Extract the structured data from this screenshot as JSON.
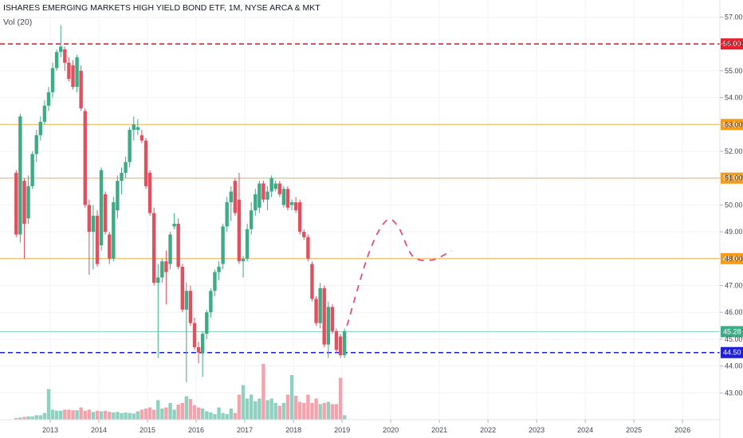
{
  "header": {
    "title": "ISHARES EMERGING MARKETS HIGH YIELD BOND ETF, 1M, NYSE ARCA & MKT",
    "volume_label": "Vol (20)"
  },
  "colors": {
    "up": "#3dab85",
    "down": "#e0505e",
    "vol_up": "#8fd1c0",
    "vol_down": "#f3a3ab",
    "red_line": "#e8202d",
    "orange_line": "#f5b047",
    "orange_badge": "#f59b1c",
    "teal_line": "#8fd1c0",
    "blue_line": "#1f1fd6",
    "projection": "#e64d7a",
    "grid": "#f2f3f5",
    "axis_text": "#434651"
  },
  "chart_data": {
    "type": "candlestick",
    "title": "ISHARES EMERGING MARKETS HIGH YIELD BOND ETF, 1M, NYSE ARCA & MKT",
    "timeframe": "1M",
    "x_ticks": [
      "2013",
      "2014",
      "2015",
      "2016",
      "2017",
      "2018",
      "2019",
      "2020",
      "2021",
      "2022",
      "2023",
      "2024",
      "2025",
      "2026"
    ],
    "y_ticks": [
      "43.00",
      "44.00",
      "45.00",
      "46.00",
      "47.00",
      "48.00",
      "49.00",
      "50.00",
      "51.00",
      "52.00",
      "53.00",
      "54.00",
      "55.00",
      "56.00",
      "57.00"
    ],
    "ylim": [
      42.0,
      57.4
    ],
    "xlim": [
      2012.0,
      2026.8
    ],
    "grid": true,
    "price_axis": "right",
    "candles": [
      {
        "t": 2012.3,
        "o": 51.2,
        "h": 51.3,
        "l": 48.8,
        "c": 48.9
      },
      {
        "t": 2012.383,
        "o": 48.9,
        "h": 53.4,
        "l": 48.6,
        "c": 53.3
      },
      {
        "t": 2012.467,
        "o": 50.9,
        "h": 51.0,
        "l": 48.0,
        "c": 49.3
      },
      {
        "t": 2012.55,
        "o": 49.5,
        "h": 51.1,
        "l": 49.3,
        "c": 50.7
      },
      {
        "t": 2012.633,
        "o": 50.7,
        "h": 52.0,
        "l": 50.6,
        "c": 51.9
      },
      {
        "t": 2012.717,
        "o": 51.9,
        "h": 52.8,
        "l": 51.6,
        "c": 52.6
      },
      {
        "t": 2012.8,
        "o": 52.6,
        "h": 53.3,
        "l": 52.4,
        "c": 53.1
      },
      {
        "t": 2012.883,
        "o": 53.1,
        "h": 53.9,
        "l": 53.0,
        "c": 53.7
      },
      {
        "t": 2012.967,
        "o": 53.7,
        "h": 54.4,
        "l": 53.5,
        "c": 54.2
      },
      {
        "t": 2013.05,
        "o": 54.2,
        "h": 55.3,
        "l": 54.0,
        "c": 55.1
      },
      {
        "t": 2013.133,
        "o": 55.1,
        "h": 55.8,
        "l": 55.0,
        "c": 55.7
      },
      {
        "t": 2013.217,
        "o": 55.7,
        "h": 56.7,
        "l": 55.5,
        "c": 55.9
      },
      {
        "t": 2013.3,
        "o": 55.8,
        "h": 55.9,
        "l": 55.0,
        "c": 55.3
      },
      {
        "t": 2013.383,
        "o": 55.3,
        "h": 55.5,
        "l": 54.6,
        "c": 54.7
      },
      {
        "t": 2013.467,
        "o": 55.2,
        "h": 55.4,
        "l": 54.3,
        "c": 54.4
      },
      {
        "t": 2013.55,
        "o": 54.4,
        "h": 55.6,
        "l": 54.2,
        "c": 55.5
      },
      {
        "t": 2013.633,
        "o": 55.0,
        "h": 55.2,
        "l": 53.5,
        "c": 53.6
      },
      {
        "t": 2013.717,
        "o": 53.5,
        "h": 53.6,
        "l": 49.9,
        "c": 50.0
      },
      {
        "t": 2013.8,
        "o": 50.0,
        "h": 50.2,
        "l": 47.4,
        "c": 49.0
      },
      {
        "t": 2013.883,
        "o": 49.0,
        "h": 50.0,
        "l": 47.6,
        "c": 49.6
      },
      {
        "t": 2013.967,
        "o": 49.6,
        "h": 49.8,
        "l": 47.7,
        "c": 47.8
      },
      {
        "t": 2014.05,
        "o": 48.5,
        "h": 51.4,
        "l": 48.3,
        "c": 51.3
      },
      {
        "t": 2014.133,
        "o": 50.4,
        "h": 50.5,
        "l": 48.9,
        "c": 49.0
      },
      {
        "t": 2014.217,
        "o": 48.9,
        "h": 49.0,
        "l": 47.8,
        "c": 48.0
      },
      {
        "t": 2014.3,
        "o": 48.0,
        "h": 50.3,
        "l": 47.9,
        "c": 50.1
      },
      {
        "t": 2014.383,
        "o": 49.8,
        "h": 51.1,
        "l": 49.5,
        "c": 50.9
      },
      {
        "t": 2014.467,
        "o": 50.9,
        "h": 51.4,
        "l": 50.4,
        "c": 51.2
      },
      {
        "t": 2014.55,
        "o": 51.2,
        "h": 51.8,
        "l": 51.0,
        "c": 51.6
      },
      {
        "t": 2014.633,
        "o": 51.6,
        "h": 52.9,
        "l": 51.4,
        "c": 52.8
      },
      {
        "t": 2014.717,
        "o": 52.8,
        "h": 53.3,
        "l": 52.4,
        "c": 53.0
      },
      {
        "t": 2014.8,
        "o": 52.8,
        "h": 53.2,
        "l": 52.6,
        "c": 52.9
      },
      {
        "t": 2014.883,
        "o": 52.6,
        "h": 52.8,
        "l": 52.3,
        "c": 52.4
      },
      {
        "t": 2014.967,
        "o": 52.4,
        "h": 52.5,
        "l": 50.6,
        "c": 50.7
      },
      {
        "t": 2015.05,
        "o": 51.2,
        "h": 51.3,
        "l": 49.6,
        "c": 49.7
      },
      {
        "t": 2015.133,
        "o": 49.7,
        "h": 49.9,
        "l": 47.0,
        "c": 47.1
      },
      {
        "t": 2015.217,
        "o": 47.1,
        "h": 47.8,
        "l": 44.3,
        "c": 47.3
      },
      {
        "t": 2015.3,
        "o": 47.3,
        "h": 48.0,
        "l": 47.1,
        "c": 47.9
      },
      {
        "t": 2015.383,
        "o": 47.9,
        "h": 48.3,
        "l": 46.3,
        "c": 47.5
      },
      {
        "t": 2015.467,
        "o": 47.8,
        "h": 49.0,
        "l": 47.6,
        "c": 48.9
      },
      {
        "t": 2015.55,
        "o": 49.2,
        "h": 49.7,
        "l": 49.1,
        "c": 49.3
      },
      {
        "t": 2015.633,
        "o": 49.3,
        "h": 49.5,
        "l": 47.6,
        "c": 47.7
      },
      {
        "t": 2015.717,
        "o": 47.7,
        "h": 47.8,
        "l": 46.0,
        "c": 46.1
      },
      {
        "t": 2015.8,
        "o": 46.1,
        "h": 47.1,
        "l": 43.4,
        "c": 46.8
      },
      {
        "t": 2015.883,
        "o": 46.8,
        "h": 47.0,
        "l": 45.5,
        "c": 45.6
      },
      {
        "t": 2015.967,
        "o": 45.6,
        "h": 45.8,
        "l": 44.6,
        "c": 44.7
      },
      {
        "t": 2016.05,
        "o": 44.7,
        "h": 44.9,
        "l": 44.1,
        "c": 44.5
      },
      {
        "t": 2016.133,
        "o": 44.5,
        "h": 45.3,
        "l": 43.6,
        "c": 45.2
      },
      {
        "t": 2016.217,
        "o": 45.2,
        "h": 46.1,
        "l": 45.0,
        "c": 46.0
      },
      {
        "t": 2016.3,
        "o": 46.0,
        "h": 46.9,
        "l": 45.8,
        "c": 46.8
      },
      {
        "t": 2016.383,
        "o": 46.8,
        "h": 47.6,
        "l": 46.6,
        "c": 47.5
      },
      {
        "t": 2016.467,
        "o": 47.5,
        "h": 47.9,
        "l": 47.2,
        "c": 47.7
      },
      {
        "t": 2016.55,
        "o": 47.8,
        "h": 49.3,
        "l": 47.6,
        "c": 49.2
      },
      {
        "t": 2016.633,
        "o": 49.2,
        "h": 50.3,
        "l": 49.0,
        "c": 50.1
      },
      {
        "t": 2016.717,
        "o": 50.1,
        "h": 50.7,
        "l": 49.4,
        "c": 50.5
      },
      {
        "t": 2016.8,
        "o": 50.9,
        "h": 51.0,
        "l": 49.6,
        "c": 49.7
      },
      {
        "t": 2016.883,
        "o": 50.2,
        "h": 51.2,
        "l": 47.8,
        "c": 47.9
      },
      {
        "t": 2016.967,
        "o": 47.9,
        "h": 48.1,
        "l": 47.3,
        "c": 48.0
      },
      {
        "t": 2017.05,
        "o": 48.0,
        "h": 49.3,
        "l": 47.9,
        "c": 49.1
      },
      {
        "t": 2017.133,
        "o": 49.1,
        "h": 50.1,
        "l": 48.9,
        "c": 49.8
      },
      {
        "t": 2017.217,
        "o": 49.8,
        "h": 50.6,
        "l": 49.6,
        "c": 50.4
      },
      {
        "t": 2017.3,
        "o": 49.9,
        "h": 50.9,
        "l": 49.7,
        "c": 50.8
      },
      {
        "t": 2017.383,
        "o": 50.8,
        "h": 50.9,
        "l": 50.1,
        "c": 50.2
      },
      {
        "t": 2017.467,
        "o": 50.2,
        "h": 50.7,
        "l": 49.8,
        "c": 50.5
      },
      {
        "t": 2017.55,
        "o": 50.5,
        "h": 51.1,
        "l": 50.3,
        "c": 51.0
      },
      {
        "t": 2017.633,
        "o": 50.6,
        "h": 50.9,
        "l": 50.5,
        "c": 50.8
      },
      {
        "t": 2017.717,
        "o": 50.8,
        "h": 50.9,
        "l": 50.3,
        "c": 50.4
      },
      {
        "t": 2017.8,
        "o": 50.0,
        "h": 50.7,
        "l": 49.9,
        "c": 50.6
      },
      {
        "t": 2017.883,
        "o": 50.6,
        "h": 50.7,
        "l": 49.8,
        "c": 49.9
      },
      {
        "t": 2017.967,
        "o": 50.0,
        "h": 50.2,
        "l": 49.8,
        "c": 50.1
      },
      {
        "t": 2018.05,
        "o": 50.1,
        "h": 50.3,
        "l": 49.7,
        "c": 49.8
      },
      {
        "t": 2018.133,
        "o": 50.1,
        "h": 50.2,
        "l": 48.9,
        "c": 49.0
      },
      {
        "t": 2018.217,
        "o": 49.0,
        "h": 49.1,
        "l": 48.7,
        "c": 48.8
      },
      {
        "t": 2018.3,
        "o": 48.8,
        "h": 48.9,
        "l": 47.9,
        "c": 48.0
      },
      {
        "t": 2018.383,
        "o": 47.8,
        "h": 47.9,
        "l": 46.4,
        "c": 46.5
      },
      {
        "t": 2018.467,
        "o": 46.5,
        "h": 46.6,
        "l": 45.5,
        "c": 45.6
      },
      {
        "t": 2018.55,
        "o": 45.6,
        "h": 47.1,
        "l": 45.4,
        "c": 46.9
      },
      {
        "t": 2018.633,
        "o": 46.9,
        "h": 47.0,
        "l": 44.7,
        "c": 44.8
      },
      {
        "t": 2018.717,
        "o": 44.8,
        "h": 46.4,
        "l": 44.3,
        "c": 46.2
      },
      {
        "t": 2018.8,
        "o": 46.2,
        "h": 46.3,
        "l": 45.2,
        "c": 45.3
      },
      {
        "t": 2018.883,
        "o": 45.3,
        "h": 45.4,
        "l": 44.5,
        "c": 44.6
      },
      {
        "t": 2018.967,
        "o": 45.1,
        "h": 45.2,
        "l": 44.3,
        "c": 44.4
      },
      {
        "t": 2019.05,
        "o": 44.4,
        "h": 45.4,
        "l": 44.3,
        "c": 45.3
      }
    ],
    "volume": [
      0.03,
      0.04,
      0.05,
      0.06,
      0.06,
      0.08,
      0.08,
      0.12,
      0.55,
      0.18,
      0.16,
      0.16,
      0.18,
      0.18,
      0.17,
      0.17,
      0.22,
      0.16,
      0.18,
      0.14,
      0.16,
      0.15,
      0.16,
      0.14,
      0.13,
      0.14,
      0.12,
      0.13,
      0.12,
      0.11,
      0.15,
      0.18,
      0.2,
      0.22,
      0.18,
      0.35,
      0.2,
      0.22,
      0.3,
      0.18,
      0.27,
      0.3,
      0.42,
      0.37,
      0.26,
      0.22,
      0.2,
      0.15,
      0.13,
      0.1,
      0.22,
      0.12,
      0.1,
      0.2,
      0.12,
      0.45,
      0.62,
      0.38,
      0.45,
      0.33,
      0.38,
      1.0,
      0.35,
      0.38,
      0.3,
      0.25,
      0.3,
      0.45,
      0.8,
      0.43,
      0.32,
      0.3,
      0.45,
      0.3,
      0.38,
      0.28,
      0.3,
      0.32,
      0.28,
      0.28,
      0.75,
      0.08
    ],
    "horizontal_lines": [
      {
        "price": 56.0,
        "label": "56.00",
        "style": "dashed",
        "color": "#e8202d"
      },
      {
        "price": 53.0,
        "label": "53.00",
        "style": "solid",
        "color": "#f5b047"
      },
      {
        "price": 51.0,
        "label": "51.00",
        "style": "solid",
        "color": "#f5b047"
      },
      {
        "price": 48.0,
        "label": "48.00",
        "style": "solid",
        "color": "#f5b047"
      },
      {
        "price": 45.28,
        "label": "45.28",
        "style": "solid",
        "color": "#8fd1c0"
      },
      {
        "price": 44.5,
        "label": "44.50",
        "style": "dashed",
        "color": "#1f1fd6"
      }
    ],
    "projection": [
      {
        "t": 2019.1,
        "p": 45.5
      },
      {
        "t": 2019.55,
        "p": 48.2
      },
      {
        "t": 2019.9,
        "p": 49.4
      },
      {
        "t": 2020.15,
        "p": 49.2
      },
      {
        "t": 2020.45,
        "p": 48.1
      },
      {
        "t": 2020.85,
        "p": 47.95
      },
      {
        "t": 2021.25,
        "p": 48.3
      }
    ]
  }
}
